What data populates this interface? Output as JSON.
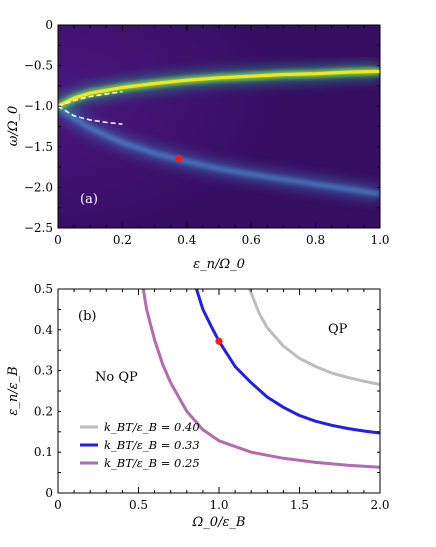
{
  "chart_data": [
    {
      "type": "heatmap",
      "panel_label": "(a)",
      "xlabel": "ε_n/Ω_0",
      "ylabel": "ω/Ω_0",
      "xlim": [
        0,
        1.0
      ],
      "ylim": [
        -2.5,
        0
      ],
      "xticks": [
        "0",
        "0.2",
        "0.4",
        "0.6",
        "0.8",
        "1.0"
      ],
      "yticks": [
        "0",
        "−0.5",
        "−1.0",
        "−1.5",
        "−2.0",
        "−2.5"
      ],
      "colors": {
        "background": "#3b0f70",
        "bright": "#f4e61e",
        "mid": "#21a585",
        "lower": "#3f7fbf",
        "marker": "#ff1a1a",
        "dashed": "#ffffff"
      },
      "upper_branch": {
        "x": [
          0,
          0.05,
          0.1,
          0.2,
          0.3,
          0.4,
          0.5,
          0.6,
          0.7,
          0.8,
          0.9,
          1.0
        ],
        "y": [
          -1.0,
          -0.9,
          -0.84,
          -0.77,
          -0.72,
          -0.68,
          -0.65,
          -0.63,
          -0.61,
          -0.6,
          -0.58,
          -0.57
        ]
      },
      "lower_branch": {
        "x": [
          0,
          0.05,
          0.1,
          0.2,
          0.3,
          0.4,
          0.5,
          0.6,
          0.7,
          0.8,
          0.9,
          1.0
        ],
        "y": [
          -1.0,
          -1.15,
          -1.27,
          -1.45,
          -1.58,
          -1.68,
          -1.77,
          -1.84,
          -1.9,
          -1.96,
          -2.02,
          -2.08
        ]
      },
      "dashed_upper": {
        "x": [
          0,
          0.05,
          0.1,
          0.15,
          0.2
        ],
        "y": [
          -1.0,
          -0.93,
          -0.88,
          -0.85,
          -0.82
        ]
      },
      "dashed_lower": {
        "x": [
          0,
          0.05,
          0.1,
          0.15,
          0.2
        ],
        "y": [
          -1.0,
          -1.12,
          -1.17,
          -1.2,
          -1.22
        ]
      },
      "marker": {
        "x": 0.375,
        "y": -1.64
      }
    },
    {
      "type": "line",
      "panel_label": "(b)",
      "xlabel": "Ω_0/ε_B",
      "ylabel": "ε_n/ε_B",
      "xlim": [
        0,
        2.0
      ],
      "ylim": [
        0,
        0.5
      ],
      "xticks": [
        "0",
        "0.5",
        "1.0",
        "1.5",
        "2.0"
      ],
      "yticks": [
        "0",
        "0.1",
        "0.2",
        "0.3",
        "0.4",
        "0.5"
      ],
      "annotations": [
        "QP",
        "No QP"
      ],
      "legend_position": "lower-left",
      "series": [
        {
          "name": "k_BT/ε_B = 0.40",
          "color": "#bdbdbd",
          "x": [
            1.19,
            1.25,
            1.3,
            1.4,
            1.5,
            1.6,
            1.7,
            1.8,
            1.9,
            2.0
          ],
          "y": [
            0.5,
            0.44,
            0.405,
            0.36,
            0.33,
            0.31,
            0.294,
            0.283,
            0.274,
            0.266
          ]
        },
        {
          "name": "k_BT/ε_B = 0.33",
          "color": "#1f1fe8",
          "x": [
            0.86,
            0.9,
            0.95,
            1.0,
            1.1,
            1.2,
            1.3,
            1.4,
            1.5,
            1.6,
            1.7,
            1.8,
            1.9,
            2.0
          ],
          "y": [
            0.5,
            0.45,
            0.41,
            0.372,
            0.31,
            0.27,
            0.235,
            0.21,
            0.19,
            0.176,
            0.166,
            0.158,
            0.152,
            0.147
          ]
        },
        {
          "name": "k_BT/ε_B = 0.25",
          "color": "#b36ab3",
          "x": [
            0.53,
            0.55,
            0.6,
            0.65,
            0.7,
            0.8,
            0.9,
            1.0,
            1.2,
            1.4,
            1.6,
            1.8,
            2.0
          ],
          "y": [
            0.5,
            0.45,
            0.375,
            0.315,
            0.27,
            0.2,
            0.155,
            0.128,
            0.1,
            0.085,
            0.075,
            0.068,
            0.063
          ]
        }
      ],
      "marker": {
        "x": 1.0,
        "y": 0.372,
        "color": "#ff1a1a"
      }
    }
  ]
}
